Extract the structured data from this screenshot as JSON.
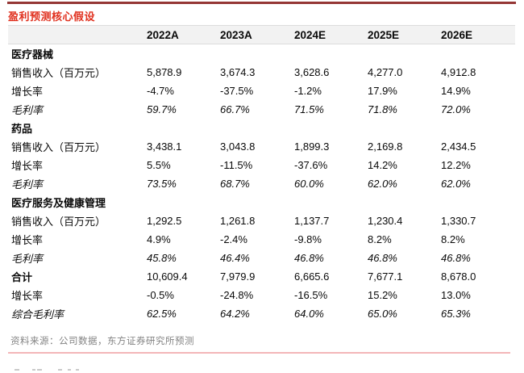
{
  "page": {
    "title": "盈利预测核心假设",
    "source": "资料来源：公司数据，东方证券研究所预测"
  },
  "colors": {
    "title_red": "#e0301e",
    "top_rule_dark_red": "#953735",
    "bottom_rule_pink": "#f3b6b8",
    "header_band_gray": "#f2f2f2",
    "source_text_gray": "#838383",
    "body_text": "#0a0a0a"
  },
  "chart_data": {
    "type": "table",
    "title": "盈利预测核心假设",
    "columns": [
      "2022A",
      "2023A",
      "2024E",
      "2025E",
      "2026E"
    ],
    "rows": [
      {
        "label": "医疗器械",
        "style": "bold",
        "values": [
          "",
          "",
          "",
          "",
          ""
        ]
      },
      {
        "label": "销售收入（百万元）",
        "style": "normal",
        "values": [
          "5,878.9",
          "3,674.3",
          "3,628.6",
          "4,277.0",
          "4,912.8"
        ]
      },
      {
        "label": "增长率",
        "style": "normal",
        "values": [
          "-4.7%",
          "-37.5%",
          "-1.2%",
          "17.9%",
          "14.9%"
        ]
      },
      {
        "label": "毛利率",
        "style": "italic",
        "values": [
          "59.7%",
          "66.7%",
          "71.5%",
          "71.8%",
          "72.0%"
        ]
      },
      {
        "label": "药品",
        "style": "bold",
        "values": [
          "",
          "",
          "",
          "",
          ""
        ]
      },
      {
        "label": "销售收入（百万元）",
        "style": "normal",
        "values": [
          "3,438.1",
          "3,043.8",
          "1,899.3",
          "2,169.8",
          "2,434.5"
        ]
      },
      {
        "label": "增长率",
        "style": "normal",
        "values": [
          "5.5%",
          "-11.5%",
          "-37.6%",
          "14.2%",
          "12.2%"
        ]
      },
      {
        "label": "毛利率",
        "style": "italic",
        "values": [
          "73.5%",
          "68.7%",
          "60.0%",
          "62.0%",
          "62.0%"
        ]
      },
      {
        "label": "医疗服务及健康管理",
        "style": "bold",
        "values": [
          "",
          "",
          "",
          "",
          ""
        ]
      },
      {
        "label": "销售收入（百万元）",
        "style": "normal",
        "values": [
          "1,292.5",
          "1,261.8",
          "1,137.7",
          "1,230.4",
          "1,330.7"
        ]
      },
      {
        "label": "增长率",
        "style": "normal",
        "values": [
          "4.9%",
          "-2.4%",
          "-9.8%",
          "8.2%",
          "8.2%"
        ]
      },
      {
        "label": "毛利率",
        "style": "italic",
        "values": [
          "45.8%",
          "46.4%",
          "46.8%",
          "46.8%",
          "46.8%"
        ]
      },
      {
        "label": "合计",
        "style": "bold",
        "values": [
          "10,609.4",
          "7,979.9",
          "6,665.6",
          "7,677.1",
          "8,678.0"
        ]
      },
      {
        "label": "增长率",
        "style": "normal",
        "values": [
          "-0.5%",
          "-24.8%",
          "-16.5%",
          "15.2%",
          "13.0%"
        ]
      },
      {
        "label": "综合毛利率",
        "style": "italic",
        "values": [
          "62.5%",
          "64.2%",
          "64.0%",
          "65.0%",
          "65.3%"
        ]
      }
    ]
  }
}
